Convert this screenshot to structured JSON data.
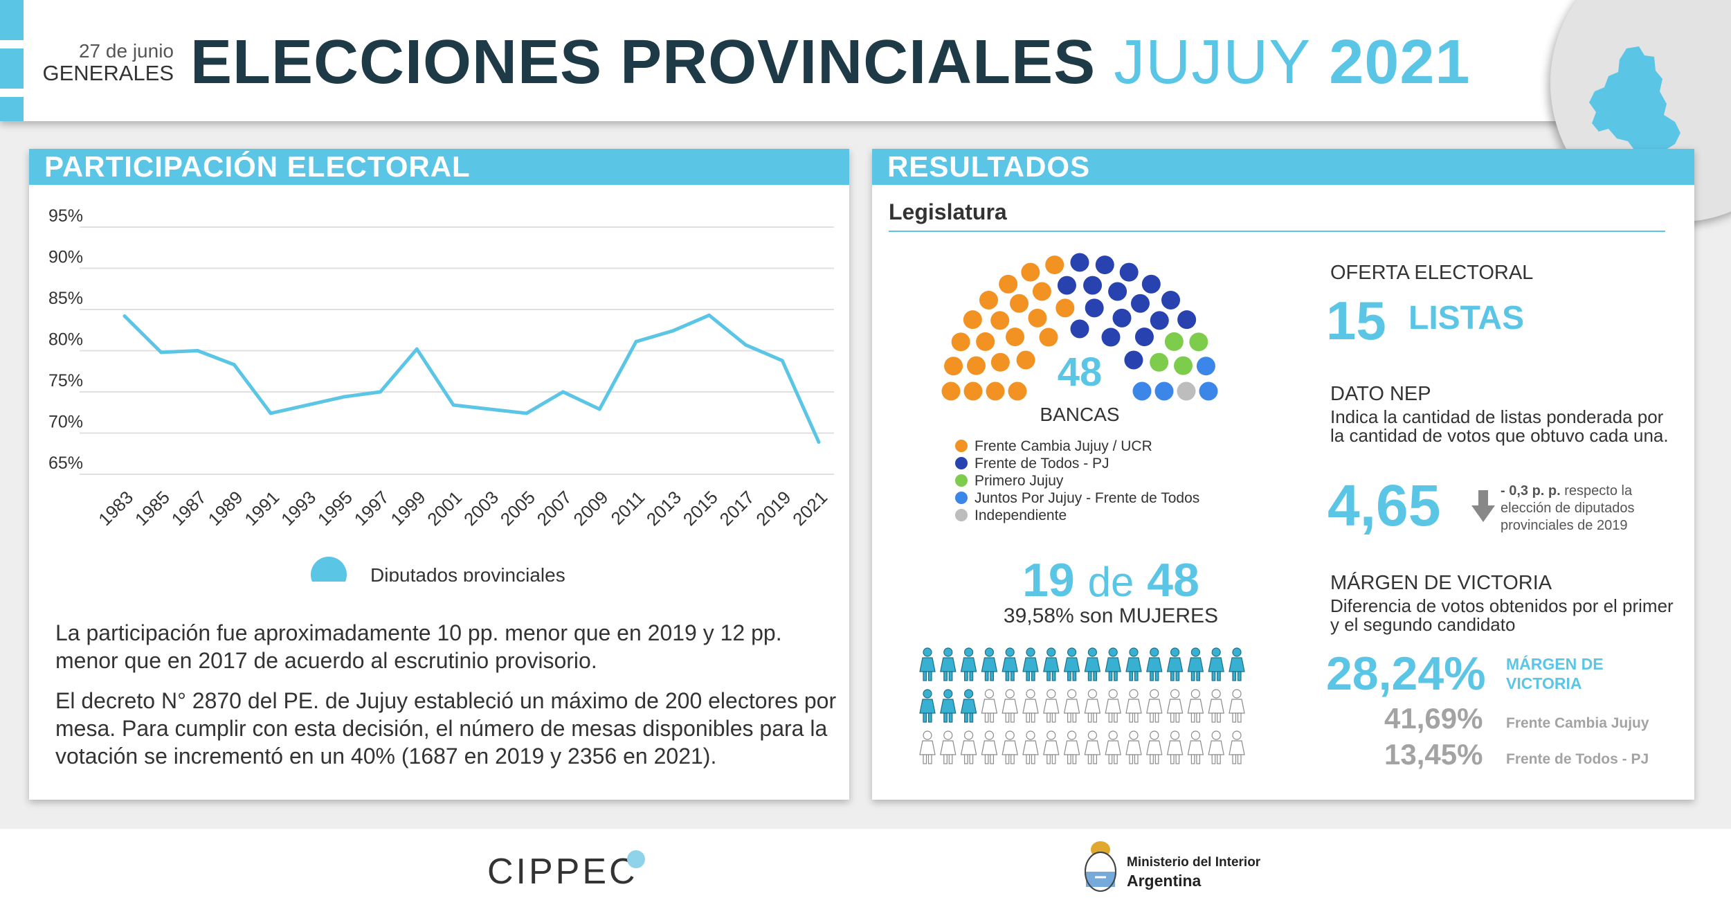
{
  "header": {
    "date": "27 de junio",
    "type": "GENERALES",
    "title_part1": "ELECCIONES PROVINCIALES",
    "title_part2": "JUJUY",
    "title_part3": "2021"
  },
  "participation": {
    "heading": "PARTICIPACIÓN ELECTORAL",
    "paragraph1": "La participación fue aproximadamente 10 pp. menor que en 2019 y 12 pp. menor que en 2017 de acuerdo al escrutinio provisorio.",
    "paragraph2": "El decreto N° 2870 del PE. de Jujuy estableció un máximo de 200 electores por mesa. Para cumplir con esta decisión, el número de mesas disponibles para la votación se incrementó en un 40% (1687 en 2019 y 2356 en 2021)."
  },
  "chart_data": {
    "type": "line",
    "title": "",
    "xlabel": "",
    "ylabel": "",
    "y_tick_labels": [
      "95%",
      "90%",
      "85%",
      "80%",
      "75%",
      "70%",
      "65%"
    ],
    "ylim": [
      65,
      95
    ],
    "grid": true,
    "legend_position": "bottom",
    "color": "#5bc5e6",
    "x": [
      "1983",
      "1985",
      "1987",
      "1989",
      "1991",
      "1993",
      "1995",
      "1997",
      "1999",
      "2001",
      "2003",
      "2005",
      "2007",
      "2009",
      "2011",
      "2013",
      "2015",
      "2017",
      "2019",
      "2021"
    ],
    "series": [
      {
        "name": "Diputados provinciales",
        "values": [
          84.2,
          79.8,
          80.0,
          78.3,
          72.4,
          73.4,
          74.4,
          75.0,
          80.2,
          73.4,
          72.9,
          72.4,
          75.0,
          72.9,
          81.1,
          82.4,
          84.3,
          80.7,
          78.8,
          68.9
        ]
      }
    ]
  },
  "results": {
    "heading": "RESULTADOS",
    "subheading": "Legislatura",
    "seats_total": "48",
    "seats_label": "BANCAS",
    "parties": [
      {
        "name": "Frente Cambia Jujuy / UCR",
        "seats": 22,
        "color": "#f29222"
      },
      {
        "name": "Frente de Todos - PJ",
        "seats": 17,
        "color": "#2843b0"
      },
      {
        "name": "Primero Jujuy",
        "seats": 4,
        "color": "#7dcc4c"
      },
      {
        "name": "Juntos Por Jujuy - Frente de Todos",
        "seats": 4,
        "color": "#3b86e8"
      },
      {
        "name": "Independiente",
        "seats": 1,
        "color": "#bdbdbd"
      }
    ],
    "women_count": "19",
    "women_connector": "de",
    "women_total": "48",
    "women_caption": "39,58% son MUJERES",
    "women_fraction": 0.3958,
    "women_color": "#37b0d1",
    "oferta": {
      "label": "OFERTA ELECTORAL",
      "number": "15",
      "unit": "LISTAS"
    },
    "nep": {
      "label": "DATO NEP",
      "description": "Indica la cantidad de listas ponderada por la cantidad de votos que obtuvo cada una.",
      "value": "4,65",
      "change_bold": "- 0,3 p. p.",
      "change_text": "respecto la elección de diputados provinciales de 2019",
      "arrow_icon": "arrow-down-icon"
    },
    "margin": {
      "label": "MÁRGEN DE VICTORIA",
      "description": "Diferencia de votos obtenidos por el primer y el segundo candidato",
      "value": "28,24%",
      "value_label": "MÁRGEN DE VICTORIA",
      "first_value": "41,69%",
      "first_label": "Frente Cambia Jujuy",
      "second_value": "13,45%",
      "second_label": "Frente de Todos - PJ"
    }
  },
  "footer": {
    "logo_left": "CIPPEC",
    "ministry_line1": "Ministerio del Interior",
    "ministry_line2": "Argentina"
  }
}
